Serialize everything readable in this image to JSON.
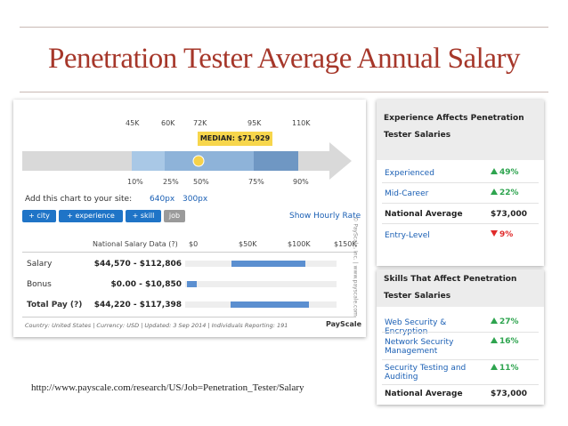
{
  "title": "Penetration Tester Average Annual Salary",
  "url": "http://www.payscale.com/research/US/Job=Penetration_Tester/Salary",
  "chart": {
    "top_labels": [
      "45K",
      "60K",
      "72K",
      "95K",
      "110K"
    ],
    "median": "MEDIAN: $71,929",
    "bottom_labels": [
      "10%",
      "25%",
      "50%",
      "75%",
      "90%"
    ],
    "add_text": "Add this chart to your site:",
    "sizes": [
      "640px",
      "300px"
    ],
    "buttons": [
      "+ city",
      "+ experience",
      "+ skill",
      "job"
    ],
    "hourly": "Show Hourly Rate",
    "table_header": [
      "National Salary Data (?)",
      "$0",
      "$50K",
      "$100K",
      "$150K"
    ],
    "rows": [
      [
        "Salary",
        "$44,570 - $112,806"
      ],
      [
        "Bonus",
        "$0.00 - $10,850"
      ],
      [
        "Total Pay (?)",
        "$44,220 - $117,398"
      ]
    ],
    "footer": "Country: United States | Currency: USD | Updated: 3 Sep 2014 | Individuals Reporting: 191",
    "brand": "PayScale",
    "copyright": "© PayScale, Inc. | www.payscale.com"
  },
  "experience": {
    "title": "Experience Affects Penetration Tester Salaries",
    "rows": [
      [
        "Experienced",
        "49%"
      ],
      [
        "Mid-Career",
        "22%"
      ],
      [
        "National Average",
        "$73,000"
      ],
      [
        "Entry-Level",
        "9%"
      ]
    ]
  },
  "skills": {
    "title": "Skills That Affect Penetration Tester Salaries",
    "rows": [
      [
        "Web Security & Encryption",
        "27%"
      ],
      [
        "Network Security Management",
        "16%"
      ],
      [
        "Security Testing and Auditing",
        "11%"
      ],
      [
        "National Average",
        "$73,000"
      ]
    ]
  }
}
